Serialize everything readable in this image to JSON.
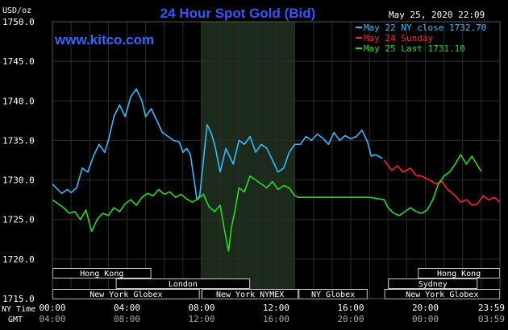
{
  "chart_data": {
    "type": "line",
    "title": "24 Hour Spot Gold (Bid)",
    "unit_label": "USD/oz",
    "watermark": "www.kitco.com",
    "timestamp": "May 25, 2020 22:09",
    "ylim": [
      1715,
      1750
    ],
    "y_ticks": [
      "1750.0",
      "1745.0",
      "1740.0",
      "1735.0",
      "1730.0",
      "1725.0",
      "1720.0",
      "1715.0"
    ],
    "xlim": [
      0,
      24
    ],
    "x_ticks_ny": [
      "00:00",
      "04:00",
      "08:00",
      "12:00",
      "16:00",
      "20:00",
      "23:59"
    ],
    "x_ticks_gmt": [
      "04:00",
      "08:00",
      "12:00",
      "16:00",
      "20:00",
      "00:00",
      "03:59"
    ],
    "axis_label_ny": "NY Time",
    "axis_label_gmt": "GMT",
    "background_colors": {
      "plot": "#000000",
      "nymex_band": "#1c2a1c",
      "grid": "#2c2c2c"
    },
    "nymex_band": [
      7.95,
      13.0
    ],
    "legend": [
      {
        "label": "May 22 NY close 1732.70",
        "color": "#33bbff"
      },
      {
        "label": "May 24 Sunday",
        "color": "#ff2222"
      },
      {
        "label": "May 25 Last 1731.10",
        "color": "#22dd22"
      }
    ],
    "sessions_top": [
      {
        "label": "Hong Kong",
        "start": 0,
        "end": 5.3
      },
      {
        "label": "Hong Kong",
        "start": 19.6,
        "end": 24
      }
    ],
    "sessions_mid": [
      {
        "label": "London",
        "start": 3.4,
        "end": 10.6
      },
      {
        "label": "Sydney",
        "start": 18.0,
        "end": 22.8
      }
    ],
    "sessions_bottom": [
      {
        "label": "New York Globex",
        "start": 0,
        "end": 7.9
      },
      {
        "label": "New York NYMEX",
        "start": 8.0,
        "end": 13.2
      },
      {
        "label": "NY Globex",
        "start": 13.2,
        "end": 16.9
      },
      {
        "label": "New York Globex",
        "start": 17.8,
        "end": 24
      }
    ],
    "series": [
      {
        "name": "May 22 NY close 1732.70",
        "color": "#33bbff",
        "x": [
          0,
          0.2,
          0.5,
          0.8,
          1.0,
          1.3,
          1.6,
          1.9,
          2.2,
          2.5,
          2.8,
          3.0,
          3.3,
          3.6,
          3.9,
          4.2,
          4.5,
          4.8,
          5.0,
          5.3,
          5.6,
          5.9,
          6.2,
          6.5,
          6.8,
          7.0,
          7.2,
          7.4,
          7.6,
          7.75,
          7.9,
          8.1,
          8.3,
          8.5,
          8.7,
          9.0,
          9.3,
          9.5,
          9.7,
          10.0,
          10.3,
          10.6,
          10.9,
          11.2,
          11.5,
          11.8,
          12.1,
          12.4,
          12.7,
          13.0,
          13.3,
          13.6,
          13.9,
          14.2,
          14.5,
          14.8,
          15.1,
          15.4,
          15.7,
          16.0,
          16.3,
          16.6,
          16.9,
          17.1,
          17.3,
          17.5,
          17.7
        ],
        "values": [
          1729.5,
          1729.0,
          1728.3,
          1728.8,
          1728.4,
          1729.0,
          1731.5,
          1731.0,
          1733.0,
          1734.5,
          1733.5,
          1735.0,
          1738.0,
          1739.5,
          1738.0,
          1740.5,
          1741.5,
          1740.0,
          1738.0,
          1739.0,
          1737.5,
          1736.0,
          1735.5,
          1735.0,
          1734.8,
          1733.5,
          1734.0,
          1733.2,
          1730.0,
          1727.5,
          1728.0,
          1732.5,
          1737.0,
          1736.0,
          1734.5,
          1731.0,
          1734.0,
          1733.0,
          1732.0,
          1735.0,
          1734.5,
          1735.5,
          1733.5,
          1734.5,
          1734.0,
          1732.5,
          1731.0,
          1731.5,
          1733.5,
          1734.5,
          1734.5,
          1735.5,
          1735.0,
          1735.8,
          1735.3,
          1734.5,
          1736.0,
          1735.0,
          1735.6,
          1735.2,
          1735.5,
          1736.3,
          1734.8,
          1733.0,
          1733.2,
          1733.0,
          1732.7
        ]
      },
      {
        "name": "May 24 Sunday",
        "color": "#ff2222",
        "x": [
          17.8,
          18.2,
          18.5,
          18.8,
          19.2,
          19.5,
          19.8,
          20.2,
          20.6,
          20.9,
          21.2,
          21.6,
          21.9,
          22.2,
          22.5,
          22.8,
          23.1,
          23.4,
          23.7,
          24.0
        ],
        "values": [
          1732.5,
          1731.2,
          1731.8,
          1731.0,
          1731.5,
          1730.6,
          1730.5,
          1730.0,
          1729.5,
          1729.8,
          1728.8,
          1728.0,
          1727.2,
          1727.5,
          1726.8,
          1727.0,
          1728.0,
          1727.5,
          1727.8,
          1727.2
        ]
      },
      {
        "name": "May 25 Last 1731.10",
        "color": "#22dd22",
        "x": [
          0,
          0.3,
          0.6,
          0.9,
          1.2,
          1.5,
          1.8,
          2.1,
          2.4,
          2.7,
          3.0,
          3.3,
          3.6,
          3.9,
          4.2,
          4.5,
          4.8,
          5.1,
          5.4,
          5.7,
          6.0,
          6.3,
          6.6,
          6.9,
          7.2,
          7.5,
          7.8,
          8.1,
          8.4,
          8.7,
          9.0,
          9.2,
          9.45,
          9.6,
          9.8,
          10.0,
          10.3,
          10.6,
          10.9,
          11.2,
          11.5,
          11.8,
          12.1,
          12.4,
          12.7,
          13.0,
          13.2,
          14.0,
          15.0,
          16.0,
          17.0,
          17.8,
          18.0,
          18.3,
          18.6,
          18.9,
          19.2,
          19.5,
          19.8,
          20.1,
          20.4,
          20.7,
          21.0,
          21.3,
          21.6,
          21.9,
          22.2,
          22.5,
          22.8,
          23.0
        ],
        "values": [
          1727.5,
          1727.0,
          1726.5,
          1725.8,
          1726.0,
          1725.0,
          1726.2,
          1723.5,
          1725.0,
          1725.8,
          1725.5,
          1726.5,
          1726.0,
          1727.0,
          1727.5,
          1726.8,
          1727.8,
          1728.3,
          1728.0,
          1728.8,
          1728.2,
          1728.5,
          1727.8,
          1728.2,
          1727.6,
          1727.2,
          1727.6,
          1728.2,
          1726.6,
          1726.0,
          1726.8,
          1724.0,
          1721.0,
          1724.0,
          1726.2,
          1729.0,
          1728.5,
          1730.5,
          1730.0,
          1729.5,
          1729.0,
          1729.8,
          1728.8,
          1729.3,
          1729.0,
          1728.0,
          1727.8,
          1727.8,
          1727.8,
          1727.8,
          1727.8,
          1727.5,
          1726.5,
          1725.8,
          1725.5,
          1726.0,
          1726.5,
          1726.0,
          1725.8,
          1726.2,
          1727.5,
          1729.5,
          1730.5,
          1731.0,
          1732.0,
          1733.2,
          1732.0,
          1733.0,
          1731.8,
          1731.1
        ]
      }
    ]
  }
}
